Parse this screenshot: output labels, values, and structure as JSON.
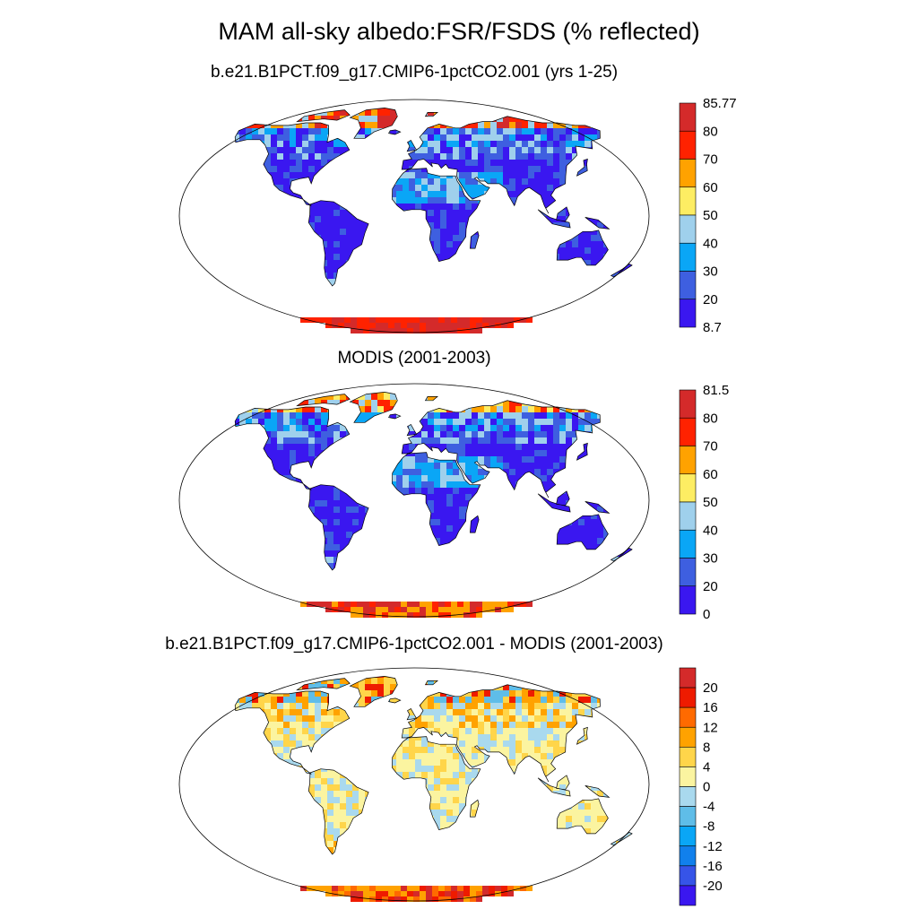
{
  "title": "MAM all-sky albedo:FSR/FSDS (% reflected)",
  "palette": {
    "main": [
      "#3a17f0",
      "#3e5fe0",
      "#0aa6f6",
      "#9fd0ec",
      "#fded63",
      "#ffa200",
      "#ff2200",
      "#d42a2a"
    ],
    "diff": [
      "#3a17f0",
      "#3654e8",
      "#1180ec",
      "#0aa6f6",
      "#5fbde8",
      "#a9d9ee",
      "#fbf4a0",
      "#ffd54a",
      "#ffa200",
      "#ff6a00",
      "#ee1b00",
      "#d42a2a"
    ]
  },
  "panels": [
    {
      "title": "b.e21.B1PCT.f09_g17.CMIP6-1pctCO2.001 (yrs 1-25)",
      "variant": "model",
      "colorbar": {
        "labels": [
          "85.77",
          "80",
          "70",
          "60",
          "50",
          "40",
          "30",
          "20",
          "8.7"
        ]
      }
    },
    {
      "title": "MODIS (2001-2003)",
      "variant": "obs",
      "colorbar": {
        "labels": [
          "81.5",
          "80",
          "70",
          "60",
          "50",
          "40",
          "30",
          "20",
          "0"
        ]
      }
    },
    {
      "title": "b.e21.B1PCT.f09_g17.CMIP6-1pctCO2.001 - MODIS (2001-2003)",
      "variant": "diff",
      "colorbar": {
        "labels": [
          "20",
          "16",
          "12",
          "8",
          "4",
          "0",
          "-4",
          "-8",
          "-12",
          "-16",
          "-20"
        ]
      }
    }
  ]
}
